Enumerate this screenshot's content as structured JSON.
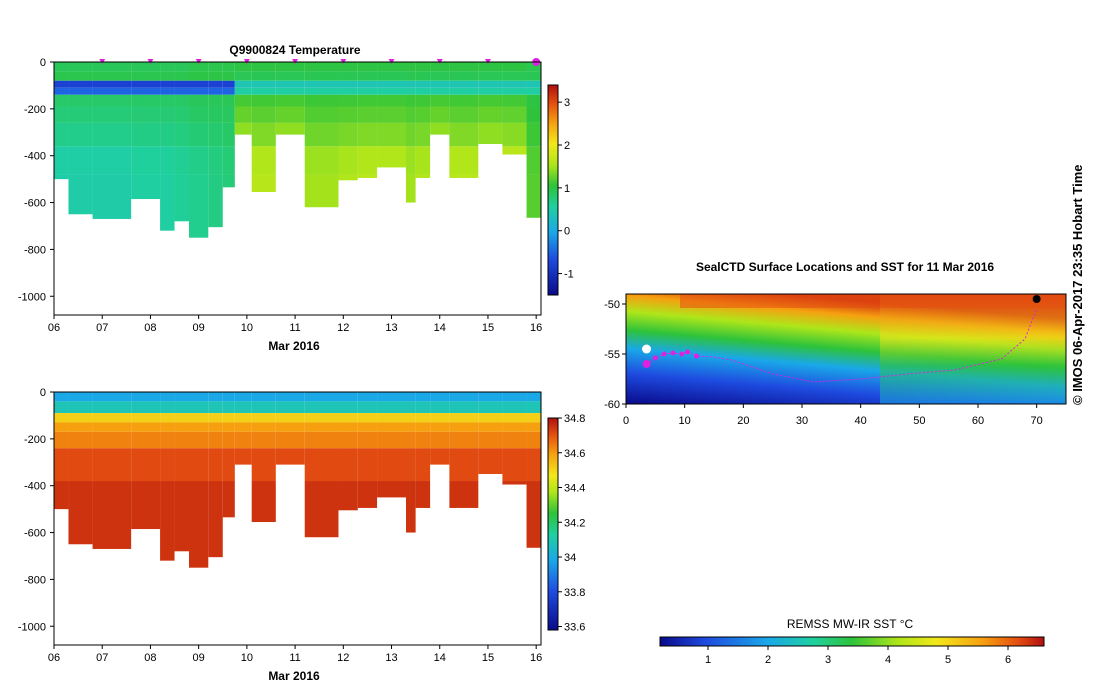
{
  "chart_data": [
    {
      "type": "heatmap",
      "title": "Q9900824  Temperature",
      "xlabel": "Mar 2016",
      "x_ticks": [
        "06",
        "07",
        "08",
        "09",
        "10",
        "11",
        "12",
        "13",
        "14",
        "15",
        "16"
      ],
      "y_ticks": [
        0,
        -200,
        -400,
        -600,
        -800,
        -1000
      ],
      "ylim": [
        -1080,
        0
      ],
      "colorbar": {
        "min": -1.5,
        "max": 3.4,
        "ticks": [
          3,
          2,
          1,
          0,
          -1
        ]
      },
      "profile_markers_days": [
        7.0,
        8.0,
        9.0,
        10.0,
        11.0,
        12.0,
        13.0,
        14.0,
        15.0,
        16.0
      ],
      "profiles": [
        {
          "x0": 6.0,
          "x1": 6.3,
          "depth": 500,
          "surface": 0.9,
          "deep": 0.5
        },
        {
          "x0": 6.3,
          "x1": 6.8,
          "depth": 650,
          "surface": 0.9,
          "deep": 0.5
        },
        {
          "x0": 6.8,
          "x1": 7.6,
          "depth": 670,
          "surface": 0.9,
          "deep": 0.5
        },
        {
          "x0": 7.6,
          "x1": 8.2,
          "depth": 585,
          "surface": 0.9,
          "deep": 0.55
        },
        {
          "x0": 8.2,
          "x1": 8.5,
          "depth": 720,
          "surface": 0.9,
          "deep": 0.55
        },
        {
          "x0": 8.5,
          "x1": 8.8,
          "depth": 680,
          "surface": 0.9,
          "deep": 0.6
        },
        {
          "x0": 8.8,
          "x1": 9.2,
          "depth": 750,
          "surface": 0.95,
          "deep": 0.65
        },
        {
          "x0": 9.2,
          "x1": 9.5,
          "depth": 705,
          "surface": 0.95,
          "deep": 0.7
        },
        {
          "x0": 9.5,
          "x1": 9.75,
          "depth": 535,
          "surface": 0.95,
          "deep": 0.75
        },
        {
          "x0": 9.75,
          "x1": 10.1,
          "depth": 310,
          "surface": 1.0,
          "deep": 1.7
        },
        {
          "x0": 10.1,
          "x1": 10.6,
          "depth": 555,
          "surface": 1.0,
          "deep": 1.6
        },
        {
          "x0": 10.6,
          "x1": 11.2,
          "depth": 310,
          "surface": 1.0,
          "deep": 1.7
        },
        {
          "x0": 11.2,
          "x1": 11.9,
          "depth": 620,
          "surface": 1.0,
          "deep": 1.5
        },
        {
          "x0": 11.9,
          "x1": 12.3,
          "depth": 505,
          "surface": 1.0,
          "deep": 1.55
        },
        {
          "x0": 12.3,
          "x1": 12.7,
          "depth": 495,
          "surface": 1.0,
          "deep": 1.6
        },
        {
          "x0": 12.7,
          "x1": 13.3,
          "depth": 450,
          "surface": 1.0,
          "deep": 1.6
        },
        {
          "x0": 13.3,
          "x1": 13.5,
          "depth": 600,
          "surface": 1.0,
          "deep": 1.5
        },
        {
          "x0": 13.5,
          "x1": 13.8,
          "depth": 495,
          "surface": 1.0,
          "deep": 1.55
        },
        {
          "x0": 13.8,
          "x1": 14.2,
          "depth": 310,
          "surface": 1.0,
          "deep": 1.7
        },
        {
          "x0": 14.2,
          "x1": 14.8,
          "depth": 495,
          "surface": 1.0,
          "deep": 1.6
        },
        {
          "x0": 14.8,
          "x1": 15.3,
          "depth": 350,
          "surface": 1.0,
          "deep": 1.7
        },
        {
          "x0": 15.3,
          "x1": 15.8,
          "depth": 395,
          "surface": 1.0,
          "deep": 1.65
        },
        {
          "x0": 15.8,
          "x1": 16.1,
          "depth": 665,
          "surface": 0.95,
          "deep": 1.2
        }
      ]
    },
    {
      "type": "heatmap",
      "xlabel": "Mar 2016",
      "x_ticks": [
        "06",
        "07",
        "08",
        "09",
        "10",
        "11",
        "12",
        "13",
        "14",
        "15",
        "16"
      ],
      "y_ticks": [
        0,
        -200,
        -400,
        -600,
        -800,
        -1000
      ],
      "ylim": [
        -1080,
        0
      ],
      "colorbar": {
        "min": 33.58,
        "max": 34.8,
        "ticks": [
          "34.8",
          "34.6",
          "34.4",
          "34.2",
          "34",
          "33.8",
          "33.6"
        ]
      }
    },
    {
      "type": "heatmap",
      "title": "SealCTD Surface Locations and SST for 11 Mar 2016",
      "x_ticks": [
        0,
        10,
        20,
        30,
        40,
        50,
        60,
        70
      ],
      "y_ticks": [
        -50,
        -55,
        -60
      ],
      "xlim": [
        0,
        75
      ],
      "ylim": [
        -60,
        -49
      ],
      "colorbar_label": "REMSS MW-IR SST °C",
      "colorbar": {
        "min": 0.2,
        "max": 6.6,
        "ticks": [
          1,
          2,
          3,
          4,
          5,
          6
        ]
      },
      "track": [
        [
          3.5,
          -56.0
        ],
        [
          5,
          -55.4
        ],
        [
          6.5,
          -55.0
        ],
        [
          8,
          -54.9
        ],
        [
          9.5,
          -55.0
        ],
        [
          10.5,
          -54.8
        ],
        [
          12,
          -55.2
        ],
        [
          15,
          -55.3
        ],
        [
          18,
          -55.6
        ],
        [
          20,
          -56.0
        ],
        [
          25,
          -57.0
        ],
        [
          32,
          -57.8
        ],
        [
          40,
          -57.5
        ],
        [
          48,
          -57.0
        ],
        [
          56,
          -56.6
        ],
        [
          64,
          -55.5
        ],
        [
          68,
          -53.5
        ],
        [
          70,
          -50.5
        ]
      ],
      "start_point": [
        3.5,
        -54.5
      ],
      "end_point": [
        70,
        -49.5
      ]
    }
  ],
  "footer": {
    "side_label": "© IMOS 06-Apr-2017 23:35 Hobart Time"
  }
}
